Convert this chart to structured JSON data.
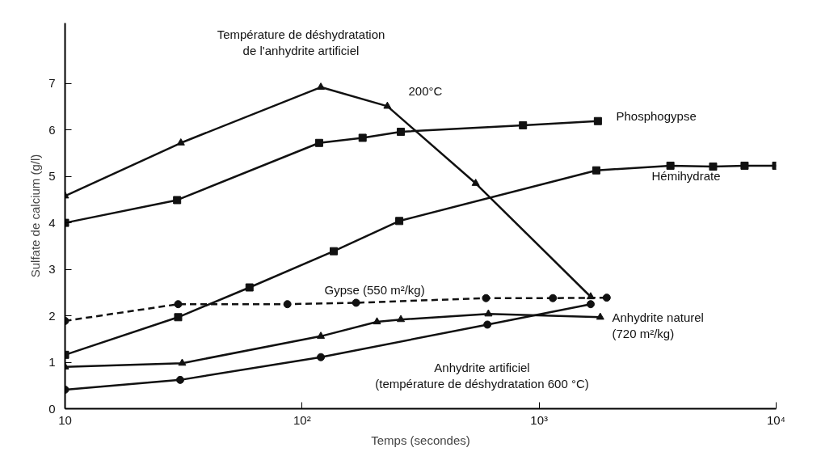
{
  "chart_data": {
    "type": "line",
    "xlabel": "Temps (secondes)",
    "ylabel": "Sulfate de calcium (g/l)",
    "log": "x",
    "xlim": [
      10,
      10000
    ],
    "xticks": [
      10,
      {
        "value": 100,
        "label": "10²"
      },
      {
        "value": 1000,
        "label": "10³"
      },
      {
        "value": 10000,
        "label": "10⁴"
      }
    ],
    "ylim": [
      0,
      8.3
    ],
    "yticks": [
      0,
      1,
      2,
      3,
      4,
      5,
      6,
      7
    ],
    "grid": false,
    "legend": false,
    "series": [
      {
        "name": "200°C",
        "color": "#111111",
        "marker": "triangle",
        "line_style": "solid",
        "x": [
          10,
          30.8,
          120,
          229,
          540,
          1650
        ],
        "values": [
          4.58,
          5.72,
          6.92,
          6.51,
          4.85,
          2.41
        ]
      },
      {
        "name": "Phosphogypse",
        "color": "#111111",
        "marker": "square",
        "line_style": "solid",
        "x": [
          10,
          29.7,
          118,
          180,
          261,
          855,
          1770
        ],
        "values": [
          4.0,
          4.49,
          5.72,
          5.83,
          5.96,
          6.1,
          6.19
        ]
      },
      {
        "name": "Hémihydrate",
        "color": "#111111",
        "marker": "square",
        "line_style": "solid",
        "x": [
          10,
          30,
          60,
          136,
          257,
          1743,
          3580,
          5420,
          7360,
          10000
        ],
        "values": [
          1.16,
          1.97,
          2.61,
          3.39,
          4.04,
          5.13,
          5.23,
          5.21,
          5.23,
          5.23
        ]
      },
      {
        "name": "Gypse (550 m²/kg)",
        "color": "#111111",
        "marker": "circle",
        "line_style": "dashed",
        "x": [
          10,
          30,
          86.7,
          169,
          597,
          1143,
          1928
        ],
        "values": [
          1.89,
          2.25,
          2.25,
          2.28,
          2.38,
          2.38,
          2.39
        ]
      },
      {
        "name": "Anhydrite naturel\n(720 m²/kg)",
        "color": "#111111",
        "marker": "triangle",
        "line_style": "solid",
        "x": [
          10,
          31.2,
          120,
          207,
          261,
          611,
          1811
        ],
        "values": [
          0.9,
          0.98,
          1.56,
          1.87,
          1.92,
          2.04,
          1.97
        ]
      },
      {
        "name": "Anhydrite artificiel\n(température de déshydratation 600 °C)",
        "color": "#111111",
        "marker": "circle",
        "line_style": "solid",
        "x": [
          10,
          30.6,
          120,
          605,
          1650
        ],
        "values": [
          0.41,
          0.62,
          1.11,
          1.81,
          2.25
        ]
      }
    ],
    "annotations": [
      "Température de déshydratation\nde l'anhydrite artificiel"
    ]
  }
}
